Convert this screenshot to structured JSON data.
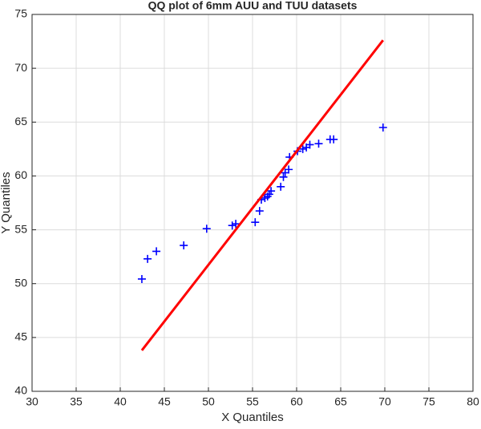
{
  "chart_data": {
    "type": "scatter",
    "title": "QQ plot of 6mm AUU and TUU datasets",
    "x_label": "X Quantiles",
    "y_label": "Y Quantiles",
    "series": [
      {
        "color": "#0000ff",
        "marker": "+",
        "x": [
          42.45,
          43.1,
          44.1,
          47.2,
          49.8,
          52.7,
          53.1,
          55.3,
          55.8,
          56.0,
          56.4,
          56.7,
          56.9,
          57.1,
          58.2,
          58.5,
          58.7,
          59.1,
          59.2,
          60.1,
          60.7,
          61.1,
          61.5,
          62.5,
          63.8,
          64.2,
          69.8
        ],
        "values": [
          50.43,
          52.3,
          53.0,
          53.55,
          55.1,
          55.4,
          55.55,
          55.7,
          56.75,
          57.8,
          57.95,
          58.1,
          58.3,
          58.6,
          59.0,
          59.9,
          60.3,
          60.6,
          61.75,
          62.3,
          62.5,
          62.65,
          62.9,
          63.0,
          63.4,
          63.4,
          64.5
        ]
      },
      {
        "color": "#ff0000",
        "marker": "line",
        "x": [
          42.45,
          69.8
        ],
        "values": [
          43.8,
          72.6
        ]
      }
    ],
    "xlim": [
      30,
      80
    ],
    "xticks": [
      30,
      35,
      40,
      45,
      50,
      55,
      60,
      65,
      70,
      75,
      80
    ],
    "ylim": [
      40,
      75
    ],
    "yticks": [
      40,
      45,
      50,
      55,
      60,
      65,
      70,
      75
    ],
    "grid": true
  }
}
